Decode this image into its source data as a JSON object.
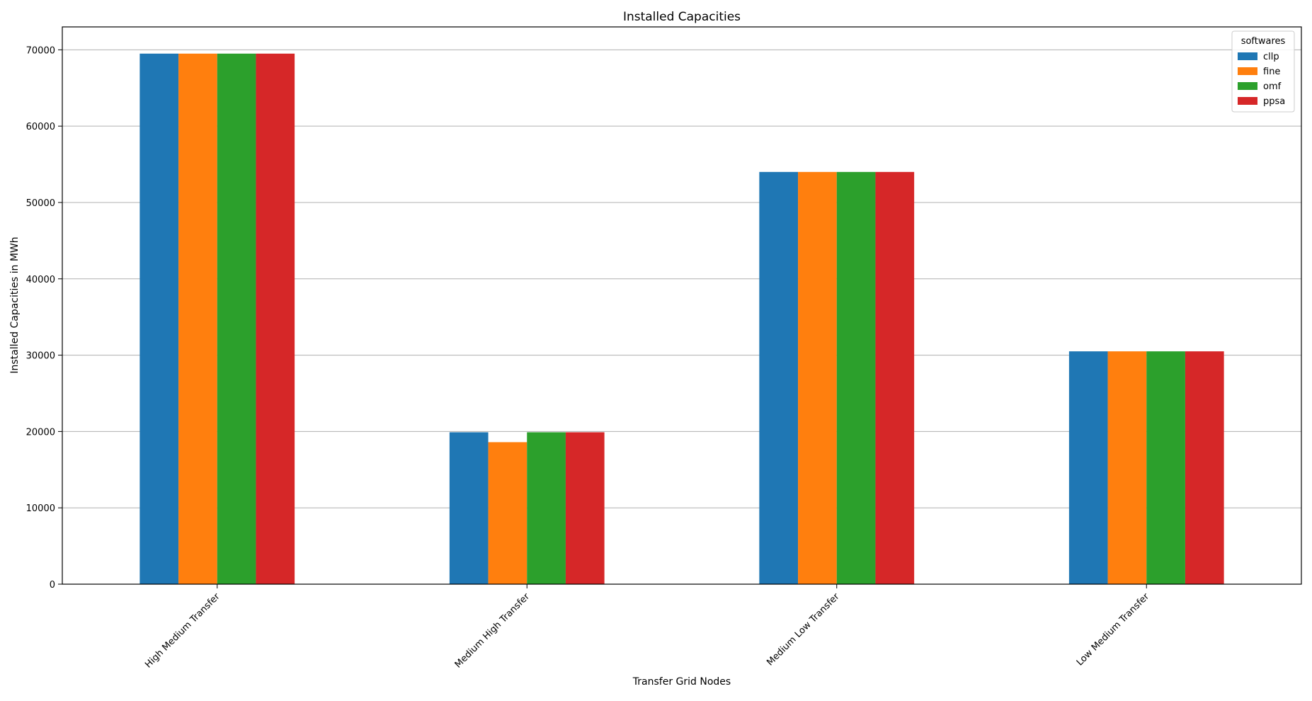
{
  "chart_data": {
    "type": "bar",
    "title": "Installed Capacities",
    "xlabel": "Transfer Grid Nodes",
    "ylabel": "Installed Capacities in MWh",
    "categories": [
      "High Medium Transfer",
      "Medium High Transfer",
      "Medium Low Transfer",
      "Low Medium Transfer"
    ],
    "series": [
      {
        "name": "cllp",
        "color": "#1f77b4",
        "values": [
          69500,
          19900,
          54000,
          30500
        ]
      },
      {
        "name": "fine",
        "color": "#ff7f0e",
        "values": [
          69500,
          18600,
          54000,
          30500
        ]
      },
      {
        "name": "omf",
        "color": "#2ca02c",
        "values": [
          69500,
          19900,
          54000,
          30500
        ]
      },
      {
        "name": "ppsa",
        "color": "#d62728",
        "values": [
          69500,
          19900,
          54000,
          30500
        ]
      }
    ],
    "ylim": [
      0,
      73000
    ],
    "yticks": [
      0,
      10000,
      20000,
      30000,
      40000,
      50000,
      60000,
      70000
    ],
    "grid": "horizontal",
    "legend_title": "softwares",
    "legend_position": "top-right"
  }
}
